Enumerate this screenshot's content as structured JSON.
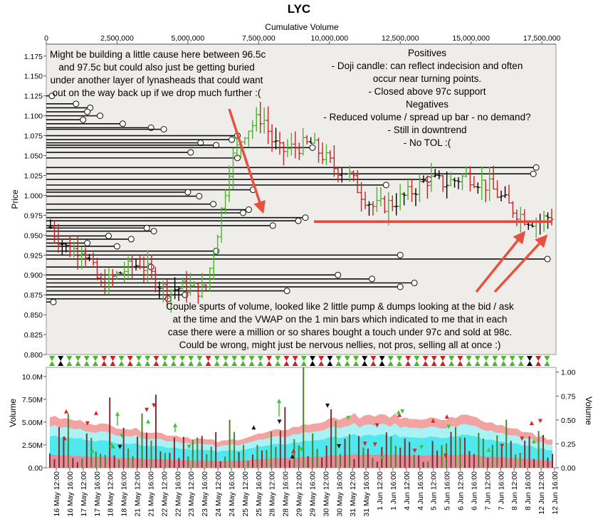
{
  "chart_data": {
    "type": "candlestick",
    "title": "LYC",
    "top_axis_label": "Cumulative Volume",
    "top_axis_range": [
      0,
      18000000
    ],
    "top_axis_ticks": [
      {
        "v": 0,
        "label": "0"
      },
      {
        "v": 2500000,
        "label": "2,500,000"
      },
      {
        "v": 5000000,
        "label": "5,000,000"
      },
      {
        "v": 7500000,
        "label": "7,500,000"
      },
      {
        "v": 10000000,
        "label": "10,000,000"
      },
      {
        "v": 12500000,
        "label": "12,500,000"
      },
      {
        "v": 15000000,
        "label": "15,000,000"
      },
      {
        "v": 17500000,
        "label": "17,500,000"
      }
    ],
    "price_axis": {
      "label": "Price",
      "range": [
        0.8,
        1.19
      ],
      "ticks": [
        "0.800",
        "0.825",
        "0.850",
        "0.875",
        "0.900",
        "0.925",
        "0.950",
        "0.975",
        "1.000",
        "1.025",
        "1.050",
        "1.075",
        "1.100",
        "1.125",
        "1.150",
        "1.175"
      ]
    },
    "volume_axis_left": {
      "label": "Volume",
      "range": [
        0,
        11000000
      ],
      "ticks": [
        {
          "v": 0,
          "label": "0.00"
        },
        {
          "v": 2500000,
          "label": "2.50M"
        },
        {
          "v": 5000000,
          "label": "5.00M"
        },
        {
          "v": 7500000,
          "label": "7.50M"
        },
        {
          "v": 10000000,
          "label": "10.0M"
        }
      ]
    },
    "volume_axis_right": {
      "label": "Volume",
      "range": [
        0,
        1.05
      ],
      "ticks": [
        "0.00",
        "0.25",
        "0.50",
        "0.75",
        "1.00"
      ]
    },
    "x_tick_labels": [
      "16 May 12:00",
      "16 May 16:00",
      "17 May 12:00",
      "17 May 16:00",
      "18 May 12:00",
      "18 May 16:00",
      "21 May 12:00",
      "21 May 16:00",
      "22 May 12:00",
      "22 May 16:00",
      "23 May 12:00",
      "23 May 16:00",
      "24 May 12:00",
      "24 May 16:00",
      "25 May 12:00",
      "25 May 16:00",
      "28 May 12:00",
      "28 May 16:00",
      "29 May 12:00",
      "29 May 16:00",
      "30 May 12:00",
      "30 May 16:00",
      "31 May 12:00",
      "31 May 16:00",
      "1 Jun 12:00",
      "1 Jun 16:00",
      "4 Jun 12:00",
      "4 Jun 16:00",
      "5 Jun 12:00",
      "5 Jun 16:00",
      "6 Jun 12:00",
      "6 Jun 16:00",
      "7 Jun 12:00",
      "7 Jun 16:00",
      "8 Jun 12:00",
      "8 Jun 16:00",
      "12 Jun 12:00",
      "12 Jun 16:00"
    ],
    "price_levels": [
      {
        "price": 1.125,
        "cumvol": 200000
      },
      {
        "price": 1.115,
        "cumvol": 1050000
      },
      {
        "price": 1.11,
        "cumvol": 1550000
      },
      {
        "price": 1.105,
        "cumvol": 1450000
      },
      {
        "price": 1.1,
        "cumvol": 1900000
      },
      {
        "price": 1.095,
        "cumvol": 1300000
      },
      {
        "price": 1.09,
        "cumvol": 2700000
      },
      {
        "price": 1.085,
        "cumvol": 3700000
      },
      {
        "price": 1.083,
        "cumvol": 4150000
      },
      {
        "price": 1.075,
        "cumvol": 6750000
      },
      {
        "price": 1.07,
        "cumvol": 6550000
      },
      {
        "price": 1.066,
        "cumvol": 5450000
      },
      {
        "price": 1.063,
        "cumvol": 6000000
      },
      {
        "price": 1.06,
        "cumvol": 9400000
      },
      {
        "price": 1.054,
        "cumvol": 5100000
      },
      {
        "price": 1.047,
        "cumvol": 6750000
      },
      {
        "price": 1.035,
        "cumvol": 17300000
      },
      {
        "price": 1.027,
        "cumvol": 17200000
      },
      {
        "price": 1.02,
        "cumvol": 13500000
      },
      {
        "price": 1.013,
        "cumvol": 12000000
      },
      {
        "price": 1.007,
        "cumvol": 7300000
      },
      {
        "price": 1.004,
        "cumvol": 5000000
      },
      {
        "price": 0.999,
        "cumvol": 5400000
      },
      {
        "price": 0.989,
        "cumvol": 5900000
      },
      {
        "price": 0.982,
        "cumvol": 7150000
      },
      {
        "price": 0.978,
        "cumvol": 6950000
      },
      {
        "price": 0.972,
        "cumvol": 9150000
      },
      {
        "price": 0.968,
        "cumvol": 8900000
      },
      {
        "price": 0.962,
        "cumvol": 8000000
      },
      {
        "price": 0.959,
        "cumvol": 3550000
      },
      {
        "price": 0.955,
        "cumvol": 3800000
      },
      {
        "price": 0.949,
        "cumvol": 2200000
      },
      {
        "price": 0.945,
        "cumvol": 3000000
      },
      {
        "price": 0.94,
        "cumvol": 1450000
      },
      {
        "price": 0.936,
        "cumvol": 2500000
      },
      {
        "price": 0.93,
        "cumvol": 6000000
      },
      {
        "price": 0.925,
        "cumvol": 12500000
      },
      {
        "price": 0.92,
        "cumvol": 17700000
      },
      {
        "price": 0.91,
        "cumvol": 3700000
      },
      {
        "price": 0.9,
        "cumvol": 10300000
      },
      {
        "price": 0.895,
        "cumvol": 11500000
      },
      {
        "price": 0.89,
        "cumvol": 13000000
      },
      {
        "price": 0.885,
        "cumvol": 12500000
      },
      {
        "price": 0.88,
        "cumvol": 8500000
      },
      {
        "price": 0.875,
        "cumvol": 4900000
      },
      {
        "price": 0.87,
        "cumvol": 4300000
      },
      {
        "price": 0.866,
        "cumvol": 250000
      }
    ],
    "support_line": {
      "price": 0.967,
      "color": "#e8453c"
    },
    "colors": {
      "up": "#49b629",
      "down": "#c92222",
      "neutral": "#000000",
      "band_red": "#f4a3a3",
      "band_cyan": "#4fe8ee",
      "band_cyan_light": "#a9f2f5",
      "vol_line": "#555555",
      "arrow": "#e85140"
    },
    "annotations": {
      "left": [
        "Might be building a little cause here between 96.5c",
        "and 97.5c but could also just be getting buried",
        "under another layer of lynasheads that could want",
        "out on the way back up if we drop much further :("
      ],
      "right": [
        "Positives",
        "- Doji candle: can reflect indecision and often",
        "occur near turning points.",
        "- Closed above 97c support",
        "Negatives",
        "- Reduced volume / spread up bar - no demand?",
        "- Still in downtrend",
        "- No TOL :("
      ],
      "bottom": [
        "Couple spurts of volume, looked like 2 little pump & dumps looking at the bid / ask",
        "at the time and the VWAP on the 1 min bars which indicated to me that in each",
        "case there were a million or so shares bought a touch under 97c and sold at 98c.",
        "Could be wrong, might just be nervous nellies, not pros, selling all at once :)"
      ]
    }
  }
}
